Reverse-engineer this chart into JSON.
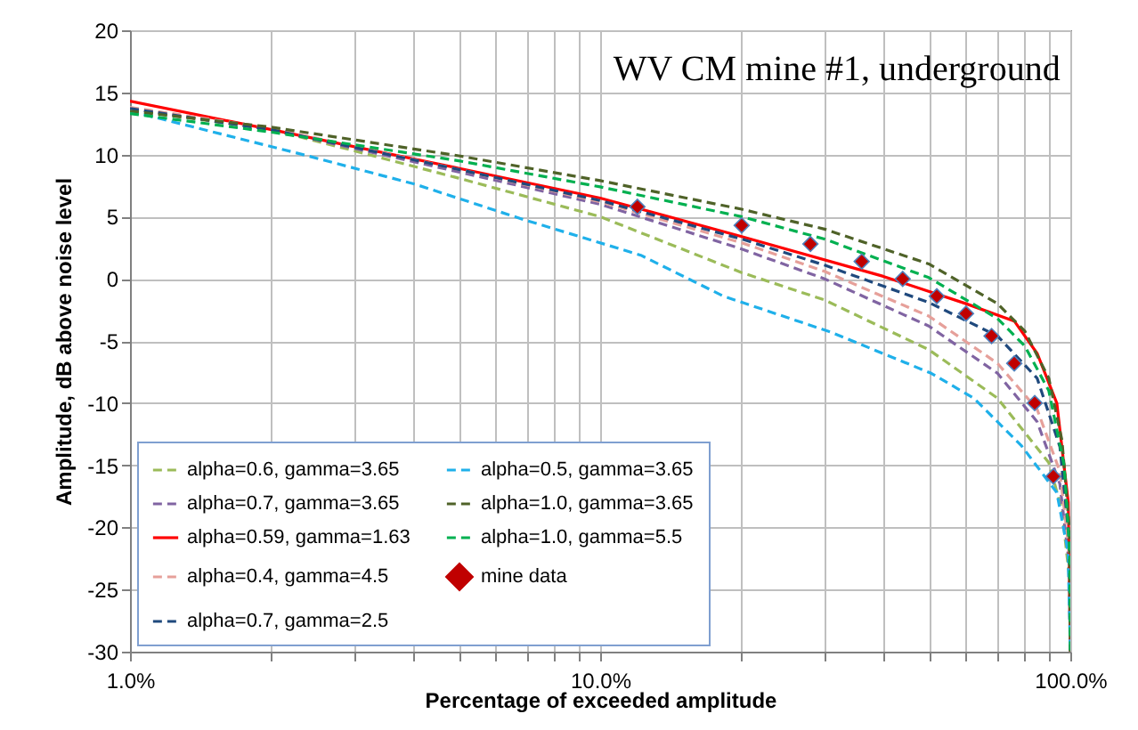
{
  "chart_data": {
    "type": "line",
    "title": "WV CM mine #1, underground",
    "xlabel": "Percentage of exceeded amplitude",
    "ylabel": "Amplitude, dB above noise level",
    "log": "x",
    "grid": true,
    "legend": "bottom left",
    "xlim": [
      1,
      100
    ],
    "ylim": [
      -30,
      20
    ],
    "xticks": [
      {
        "value": 1,
        "label": "1.0%"
      },
      {
        "value": 2,
        "label": null
      },
      {
        "value": 3,
        "label": null
      },
      {
        "value": 4,
        "label": null
      },
      {
        "value": 5,
        "label": null
      },
      {
        "value": 6,
        "label": null
      },
      {
        "value": 7,
        "label": null
      },
      {
        "value": 8,
        "label": null
      },
      {
        "value": 9,
        "label": null
      },
      {
        "value": 10,
        "label": "10.0%"
      },
      {
        "value": 20,
        "label": null
      },
      {
        "value": 30,
        "label": null
      },
      {
        "value": 40,
        "label": null
      },
      {
        "value": 50,
        "label": null
      },
      {
        "value": 60,
        "label": null
      },
      {
        "value": 70,
        "label": null
      },
      {
        "value": 80,
        "label": null
      },
      {
        "value": 90,
        "label": null
      },
      {
        "value": 100,
        "label": "100.0%"
      }
    ],
    "yticks": [
      -30,
      -25,
      -20,
      -15,
      -10,
      -5,
      0,
      5,
      10,
      15,
      20
    ],
    "series": [
      {
        "name": "alpha=0.6, gamma=3.65",
        "color": "#9bbb59",
        "line_style": "dashed",
        "x": [
          1,
          2,
          3,
          5,
          10,
          20,
          30,
          50,
          70,
          90,
          96,
          99.5,
          100
        ],
        "values": [
          13.6,
          12.0,
          10.3,
          8.1,
          5.0,
          0.5,
          -1.7,
          -5.7,
          -9.6,
          -14.8,
          -18.6,
          -24,
          -30
        ]
      },
      {
        "name": "alpha=0.7, gamma=3.65",
        "color": "#8064a2",
        "line_style": "dashed",
        "x": [
          1,
          2,
          5,
          10,
          20,
          30,
          50,
          70,
          85,
          95,
          99.5,
          100
        ],
        "values": [
          13.7,
          12.0,
          8.6,
          6.0,
          2.4,
          0.0,
          -3.8,
          -7.6,
          -11.5,
          -16.5,
          -23,
          -30
        ]
      },
      {
        "name": "alpha=0.59, gamma=1.63",
        "color": "#ff0000",
        "line_style": "solid",
        "x": [
          1,
          2,
          5,
          10,
          20,
          40,
          60,
          76,
          85,
          93.6,
          99,
          100
        ],
        "values": [
          14.3,
          12.0,
          8.9,
          6.5,
          3.4,
          0.2,
          -2.0,
          -3.4,
          -6,
          -10,
          -18,
          -30
        ]
      },
      {
        "name": "alpha=0.4, gamma=4.5",
        "color": "#e6a09a",
        "line_style": "dashed",
        "x": [
          1,
          2,
          5,
          10,
          20,
          30,
          50,
          70,
          85,
          95,
          99.5,
          100
        ],
        "values": [
          13.8,
          12.1,
          8.8,
          6.2,
          2.9,
          0.6,
          -3.0,
          -6.8,
          -10.5,
          -15.5,
          -22,
          -30
        ]
      },
      {
        "name": "alpha=0.7, gamma=2.5",
        "color": "#1f497d",
        "line_style": "dashed",
        "x": [
          1,
          2,
          5,
          10,
          20,
          30,
          50,
          70,
          85,
          95,
          99.5,
          100
        ],
        "values": [
          13.7,
          12.0,
          8.8,
          6.3,
          3.2,
          1.1,
          -1.9,
          -4.6,
          -8.0,
          -13.5,
          -21,
          -30
        ]
      },
      {
        "name": "alpha=0.5, gamma=3.65",
        "color": "#1fb0ea",
        "line_style": "dashed",
        "x": [
          1,
          2.33,
          4.05,
          6.83,
          12.2,
          18.3,
          31,
          50.6,
          62.3,
          78.6,
          93.6,
          98.9,
          100
        ],
        "values": [
          13.5,
          10.0,
          7.6,
          4.8,
          1.9,
          -1.4,
          -4.3,
          -7.6,
          -9.6,
          -13.4,
          -17.2,
          -22.0,
          -30
        ]
      },
      {
        "name": "alpha=1.0, gamma=3.65",
        "color": "#4f6228",
        "line_style": "dashed",
        "x": [
          1,
          2,
          5,
          10,
          20,
          30,
          50,
          70,
          80,
          90,
          96,
          99.5,
          100
        ],
        "values": [
          13.5,
          12.2,
          9.9,
          7.9,
          5.6,
          4.0,
          1.2,
          -2.0,
          -4.2,
          -8,
          -13,
          -20,
          -30
        ]
      },
      {
        "name": "alpha=1.0, gamma=5.5",
        "color": "#00b050",
        "line_style": "dashed",
        "x": [
          1,
          2,
          5,
          10,
          20,
          30,
          50,
          70,
          80,
          90,
          97,
          99.7,
          100
        ],
        "values": [
          13.3,
          11.8,
          9.5,
          7.4,
          5.0,
          3.2,
          0.1,
          -3.2,
          -5.4,
          -9,
          -15,
          -22,
          -30
        ]
      },
      {
        "name": "mine data",
        "type": "scatter",
        "marker": "diamond",
        "color": "#c00000",
        "x": [
          12,
          20,
          28,
          36,
          44,
          52,
          60,
          68,
          76,
          84,
          92
        ],
        "values": [
          5.8,
          4.3,
          2.8,
          1.4,
          0.0,
          -1.4,
          -2.8,
          -4.6,
          -6.8,
          -10.0,
          -15.9
        ]
      }
    ]
  }
}
